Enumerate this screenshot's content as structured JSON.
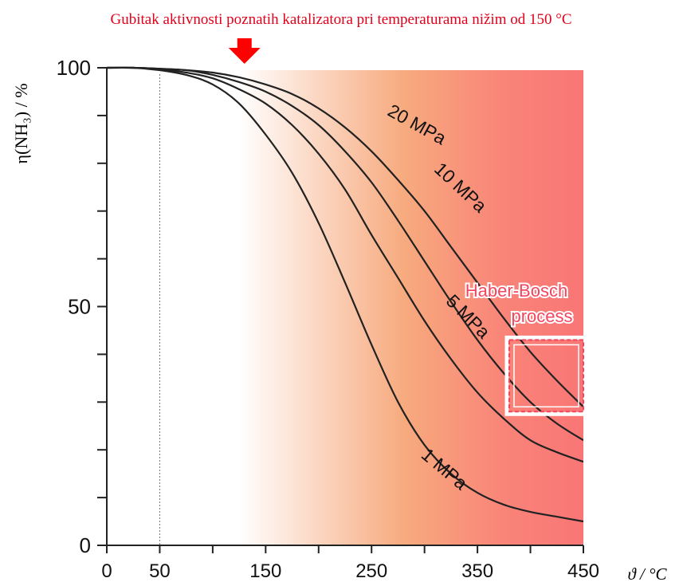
{
  "chart_data": {
    "type": "line",
    "title": "Gubitak aktivnosti poznatih katalizatora pri temperaturama nižim od 150 °C",
    "xlabel": "ϑ / °C",
    "ylabel": "η(NH₃) / %",
    "xlim": [
      0,
      450
    ],
    "ylim": [
      0,
      100
    ],
    "x_ticks": [
      0,
      50,
      150,
      250,
      350,
      450
    ],
    "x_minor_ticks": [
      100,
      200,
      300,
      400
    ],
    "y_ticks": [
      0,
      50,
      100
    ],
    "y_minor_ticks": [
      10,
      20,
      30,
      40,
      60,
      70,
      80,
      90
    ],
    "grid": false,
    "legend": "none",
    "reference_line_x": 50,
    "shaded_region": {
      "x_start": 125,
      "x_end": 450,
      "colors": [
        "#ffffff",
        "#f7aa7e",
        "#f98378",
        "#f97676"
      ]
    },
    "highlight_box": {
      "label_line1": "Haber-Bosch",
      "label_line2": "process",
      "x": [
        380,
        450
      ],
      "y": [
        28,
        43
      ],
      "color": "#f3455e"
    },
    "arrow_color": "#ff0000",
    "title_color": "#e2001a",
    "series": [
      {
        "name": "20 MPa",
        "x": [
          0,
          25,
          50,
          75,
          100,
          125,
          150,
          175,
          200,
          225,
          250,
          275,
          300,
          325,
          350,
          375,
          400,
          425,
          450
        ],
        "y": [
          100,
          100,
          99.8,
          99.5,
          99,
          98,
          96.5,
          94.5,
          91.5,
          87.5,
          82.5,
          76.5,
          70,
          62.5,
          55,
          47.5,
          40.5,
          34.5,
          29
        ]
      },
      {
        "name": "10 MPa",
        "x": [
          0,
          25,
          50,
          75,
          100,
          125,
          150,
          175,
          200,
          225,
          250,
          275,
          300,
          325,
          350,
          375,
          400,
          425,
          450
        ],
        "y": [
          100,
          100,
          99.8,
          99.5,
          98.5,
          97,
          95,
          92,
          88,
          82.5,
          76,
          68,
          59.5,
          51,
          43,
          36,
          30,
          25.5,
          22
        ]
      },
      {
        "name": "5 MPa",
        "x": [
          0,
          25,
          50,
          75,
          100,
          125,
          150,
          175,
          200,
          225,
          250,
          275,
          300,
          325,
          350,
          375,
          400,
          425,
          450
        ],
        "y": [
          100,
          100,
          99.7,
          99,
          97.8,
          95.5,
          92.5,
          88,
          82,
          74.5,
          65,
          56,
          47,
          39,
          32,
          26.5,
          22,
          19.5,
          17.5
        ]
      },
      {
        "name": "1 MPa",
        "x": [
          0,
          25,
          50,
          75,
          100,
          125,
          150,
          175,
          200,
          225,
          250,
          275,
          300,
          325,
          350,
          375,
          400,
          425,
          450
        ],
        "y": [
          100,
          100,
          99.5,
          98.5,
          96.5,
          92.5,
          86,
          78,
          67.5,
          55,
          42,
          30,
          21,
          15,
          11,
          8.5,
          7,
          6,
          5
        ]
      }
    ]
  }
}
